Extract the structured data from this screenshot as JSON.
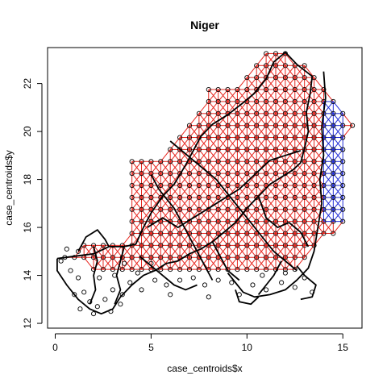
{
  "chart_data": {
    "type": "scatter",
    "title": "Niger",
    "xlabel": "case_centroids$x",
    "ylabel": "case_centroids$y",
    "xlim": [
      -0.4,
      16.0
    ],
    "ylim": [
      11.8,
      23.5
    ],
    "xticks": [
      0,
      5,
      10,
      15
    ],
    "yticks": [
      12,
      14,
      16,
      18,
      20,
      22
    ],
    "grid": false,
    "legend": "none",
    "colors": {
      "red_edges": "#e8261f",
      "blue_edges": "#1f2bd6",
      "points": "#000000",
      "border_lines": "#000000"
    },
    "grid_spacing": 0.5,
    "grid_rows": [
      {
        "y": 23.25,
        "x_from": 11.0,
        "x_to": 12.0
      },
      {
        "y": 22.75,
        "x_from": 10.5,
        "x_to": 13.0
      },
      {
        "y": 22.25,
        "x_from": 10.0,
        "x_to": 13.5
      },
      {
        "y": 21.75,
        "x_from": 8.0,
        "x_to": 14.0
      },
      {
        "y": 21.25,
        "x_from": 8.0,
        "x_to": 14.5
      },
      {
        "y": 20.75,
        "x_from": 7.5,
        "x_to": 15.0
      },
      {
        "y": 20.25,
        "x_from": 7.0,
        "x_to": 15.5
      },
      {
        "y": 19.75,
        "x_from": 6.5,
        "x_to": 15.0
      },
      {
        "y": 19.25,
        "x_from": 6.0,
        "x_to": 15.0
      },
      {
        "y": 18.75,
        "x_from": 4.0,
        "x_to": 15.0
      },
      {
        "y": 18.25,
        "x_from": 4.0,
        "x_to": 15.0
      },
      {
        "y": 17.75,
        "x_from": 4.0,
        "x_to": 15.0
      },
      {
        "y": 17.25,
        "x_from": 4.0,
        "x_to": 15.0
      },
      {
        "y": 16.75,
        "x_from": 4.0,
        "x_to": 15.0
      },
      {
        "y": 16.25,
        "x_from": 4.0,
        "x_to": 15.0
      },
      {
        "y": 15.75,
        "x_from": 4.0,
        "x_to": 14.5
      },
      {
        "y": 15.25,
        "x_from": 1.5,
        "x_to": 13.5
      },
      {
        "y": 14.75,
        "x_from": 0.5,
        "x_to": 13.0
      },
      {
        "y": 14.25,
        "x_from": 2.0,
        "x_to": 12.5
      }
    ],
    "blue_region": {
      "x_from": 14.0,
      "x_to": 15.0,
      "y_from": 16.0,
      "y_to": 21.5
    },
    "extra_points": [
      {
        "x": 0.3,
        "y": 14.6
      },
      {
        "x": 0.8,
        "y": 14.2
      },
      {
        "x": 1.2,
        "y": 13.9
      },
      {
        "x": 1.5,
        "y": 13.3
      },
      {
        "x": 1.8,
        "y": 12.9
      },
      {
        "x": 2.2,
        "y": 12.7
      },
      {
        "x": 2.6,
        "y": 13.0
      },
      {
        "x": 3.0,
        "y": 13.4
      },
      {
        "x": 3.5,
        "y": 13.2
      },
      {
        "x": 3.9,
        "y": 13.7
      },
      {
        "x": 2.3,
        "y": 13.9
      },
      {
        "x": 3.1,
        "y": 14.0
      },
      {
        "x": 1.3,
        "y": 12.6
      },
      {
        "x": 2.0,
        "y": 12.4
      },
      {
        "x": 2.9,
        "y": 12.5
      },
      {
        "x": 3.4,
        "y": 12.8
      },
      {
        "x": 1.0,
        "y": 13.2
      },
      {
        "x": 4.3,
        "y": 14.1
      },
      {
        "x": 5.2,
        "y": 13.8
      },
      {
        "x": 5.8,
        "y": 13.6
      },
      {
        "x": 6.5,
        "y": 13.8
      },
      {
        "x": 7.2,
        "y": 13.9
      },
      {
        "x": 7.8,
        "y": 13.6
      },
      {
        "x": 8.5,
        "y": 13.8
      },
      {
        "x": 9.2,
        "y": 13.7
      },
      {
        "x": 9.6,
        "y": 13.2
      },
      {
        "x": 10.3,
        "y": 13.6
      },
      {
        "x": 11.0,
        "y": 13.4
      },
      {
        "x": 11.8,
        "y": 13.7
      },
      {
        "x": 12.5,
        "y": 13.5
      },
      {
        "x": 13.0,
        "y": 13.9
      },
      {
        "x": 13.4,
        "y": 13.3
      },
      {
        "x": 4.5,
        "y": 13.4
      },
      {
        "x": 6.0,
        "y": 13.2
      },
      {
        "x": 8.0,
        "y": 13.1
      },
      {
        "x": 10.8,
        "y": 14.0
      },
      {
        "x": 12.0,
        "y": 14.1
      },
      {
        "x": 5.0,
        "y": 14.5
      },
      {
        "x": 3.6,
        "y": 14.5
      },
      {
        "x": 0.6,
        "y": 15.1
      },
      {
        "x": 1.2,
        "y": 15.0
      }
    ],
    "border_paths": [
      [
        [
          0.1,
          14.7
        ],
        [
          1.0,
          14.8
        ],
        [
          2.0,
          14.9
        ],
        [
          2.8,
          15.2
        ],
        [
          3.6,
          15.2
        ],
        [
          4.2,
          15.3
        ],
        [
          4.6,
          16.0
        ],
        [
          5.0,
          16.6
        ],
        [
          5.6,
          17.3
        ],
        [
          6.2,
          17.8
        ],
        [
          6.8,
          18.6
        ],
        [
          7.2,
          19.2
        ],
        [
          7.6,
          19.8
        ],
        [
          8.2,
          20.3
        ],
        [
          9.0,
          20.7
        ],
        [
          9.8,
          21.2
        ],
        [
          10.4,
          21.6
        ],
        [
          11.0,
          22.2
        ],
        [
          11.4,
          22.9
        ],
        [
          12.0,
          23.3
        ],
        [
          12.6,
          22.8
        ],
        [
          13.4,
          22.3
        ]
      ],
      [
        [
          13.4,
          22.3
        ],
        [
          13.3,
          21.6
        ],
        [
          13.1,
          20.8
        ],
        [
          13.2,
          20.0
        ],
        [
          13.0,
          19.3
        ],
        [
          12.8,
          18.7
        ],
        [
          12.4,
          18.4
        ],
        [
          11.8,
          18.1
        ],
        [
          11.2,
          17.8
        ],
        [
          10.6,
          17.3
        ],
        [
          10.0,
          16.8
        ],
        [
          9.4,
          16.2
        ],
        [
          8.8,
          15.8
        ],
        [
          8.2,
          15.4
        ],
        [
          7.6,
          15.1
        ],
        [
          7.0,
          14.9
        ],
        [
          6.4,
          14.6
        ],
        [
          5.8,
          14.5
        ],
        [
          5.2,
          14.2
        ],
        [
          4.6,
          14.0
        ],
        [
          4.0,
          13.6
        ],
        [
          3.4,
          13.1
        ],
        [
          3.0,
          12.6
        ],
        [
          2.4,
          12.4
        ],
        [
          1.8,
          12.6
        ],
        [
          1.2,
          13.0
        ],
        [
          0.6,
          13.6
        ],
        [
          0.1,
          14.2
        ],
        [
          0.1,
          14.7
        ]
      ],
      [
        [
          14.0,
          22.5
        ],
        [
          14.1,
          21.4
        ],
        [
          13.9,
          20.2
        ],
        [
          14.0,
          19.0
        ],
        [
          13.8,
          18.0
        ],
        [
          13.9,
          17.0
        ],
        [
          13.7,
          16.0
        ],
        [
          13.5,
          15.0
        ],
        [
          13.2,
          14.3
        ],
        [
          12.6,
          13.8
        ],
        [
          12.0,
          13.4
        ],
        [
          11.2,
          13.2
        ],
        [
          10.4,
          13.1
        ],
        [
          9.8,
          13.3
        ],
        [
          9.4,
          13.7
        ],
        [
          9.0,
          14.1
        ]
      ],
      [
        [
          4.8,
          16.0
        ],
        [
          5.6,
          16.4
        ],
        [
          6.4,
          16.0
        ],
        [
          7.2,
          16.4
        ],
        [
          8.0,
          16.8
        ],
        [
          8.8,
          17.2
        ],
        [
          9.6,
          17.6
        ],
        [
          10.4,
          18.2
        ],
        [
          11.2,
          18.8
        ],
        [
          12.0,
          19.0
        ],
        [
          12.8,
          19.2
        ]
      ],
      [
        [
          5.0,
          18.2
        ],
        [
          5.4,
          17.6
        ],
        [
          5.8,
          17.2
        ],
        [
          6.2,
          16.8
        ],
        [
          6.6,
          16.2
        ],
        [
          7.0,
          15.6
        ],
        [
          7.4,
          15.0
        ],
        [
          7.8,
          14.4
        ],
        [
          8.2,
          13.8
        ]
      ],
      [
        [
          2.0,
          15.2
        ],
        [
          2.2,
          14.6
        ],
        [
          2.0,
          14.0
        ],
        [
          2.1,
          13.4
        ],
        [
          1.8,
          12.8
        ]
      ],
      [
        [
          3.6,
          15.2
        ],
        [
          3.4,
          14.6
        ],
        [
          3.2,
          14.0
        ],
        [
          3.4,
          13.4
        ],
        [
          3.1,
          12.8
        ]
      ],
      [
        [
          6.0,
          19.6
        ],
        [
          6.6,
          19.2
        ],
        [
          7.2,
          18.8
        ],
        [
          7.8,
          18.4
        ],
        [
          8.4,
          18.0
        ],
        [
          9.0,
          17.4
        ],
        [
          9.6,
          16.8
        ],
        [
          10.2,
          16.2
        ],
        [
          10.8,
          15.6
        ],
        [
          11.4,
          15.0
        ],
        [
          12.0,
          14.6
        ],
        [
          12.6,
          14.2
        ]
      ],
      [
        [
          8.2,
          15.4
        ],
        [
          8.6,
          14.8
        ],
        [
          9.0,
          14.2
        ],
        [
          9.6,
          13.8
        ]
      ],
      [
        [
          11.8,
          14.6
        ],
        [
          11.4,
          14.0
        ],
        [
          11.0,
          13.6
        ],
        [
          10.6,
          13.2
        ]
      ],
      [
        [
          4.4,
          14.8
        ],
        [
          5.0,
          14.4
        ],
        [
          5.6,
          14.0
        ],
        [
          6.2,
          13.6
        ],
        [
          6.8,
          13.4
        ],
        [
          7.4,
          13.6
        ]
      ],
      [
        [
          12.6,
          14.4
        ],
        [
          13.0,
          14.0
        ],
        [
          13.6,
          13.6
        ],
        [
          13.4,
          13.1
        ],
        [
          12.8,
          13.0
        ]
      ],
      [
        [
          9.4,
          13.4
        ],
        [
          9.6,
          12.9
        ],
        [
          10.2,
          12.8
        ],
        [
          10.6,
          13.1
        ]
      ],
      [
        [
          1.2,
          15.0
        ],
        [
          1.6,
          15.6
        ],
        [
          2.2,
          15.9
        ],
        [
          2.6,
          15.5
        ],
        [
          2.8,
          15.2
        ]
      ],
      [
        [
          10.6,
          17.3
        ],
        [
          11.0,
          16.4
        ],
        [
          11.6,
          16.0
        ],
        [
          12.2,
          16.2
        ],
        [
          12.8,
          15.8
        ],
        [
          13.2,
          15.2
        ]
      ]
    ]
  }
}
